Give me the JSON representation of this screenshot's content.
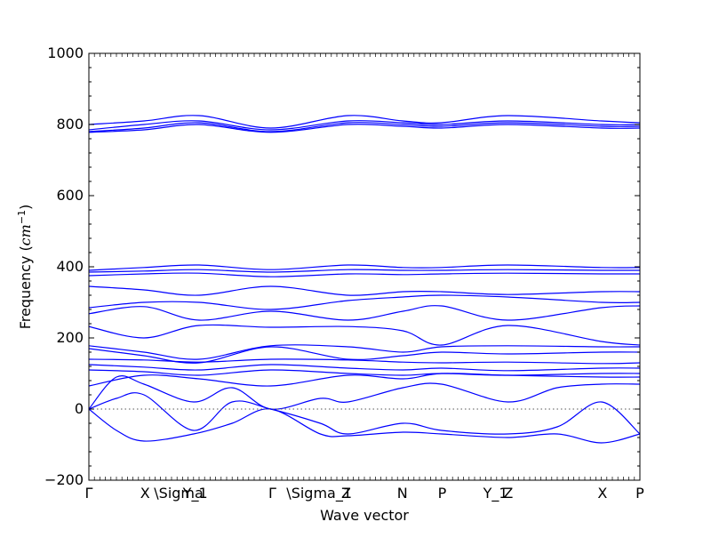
{
  "chart_data": {
    "type": "line",
    "title": "",
    "xlabel": "Wave vector",
    "ylabel": "Frequency (",
    "ylabel_math": "cm",
    "ylabel_sup": "−1",
    "ylabel_close": ")",
    "ylim": [
      -200,
      1000
    ],
    "yticks": [
      -200,
      0,
      200,
      400,
      600,
      800,
      1000
    ],
    "xlim": [
      0,
      1
    ],
    "xticks": [
      {
        "x": 0.0,
        "label": "Γ"
      },
      {
        "x": 0.102,
        "label": "X"
      },
      {
        "x": 0.163,
        "label": "\\Sigma"
      },
      {
        "x": 0.193,
        "label": "Y_1"
      },
      {
        "x": 0.333,
        "label": "Γ"
      },
      {
        "x": 0.418,
        "label": "\\Sigma_1"
      },
      {
        "x": 0.467,
        "label": "Z"
      },
      {
        "x": 0.569,
        "label": "N"
      },
      {
        "x": 0.641,
        "label": "P"
      },
      {
        "x": 0.738,
        "label": "Y_1"
      },
      {
        "x": 0.761,
        "label": "Z"
      },
      {
        "x": 0.932,
        "label": "X"
      },
      {
        "x": 1.0,
        "label": "P"
      }
    ],
    "zero_line": 0,
    "grid": false,
    "legend": "none",
    "series": [
      {
        "x": [
          0,
          0.1,
          0.2,
          0.33,
          0.47,
          0.57,
          0.64,
          0.76,
          0.93,
          1.0
        ],
        "y": [
          800,
          810,
          825,
          790,
          825,
          810,
          805,
          825,
          810,
          805
        ]
      },
      {
        "x": [
          0,
          0.1,
          0.2,
          0.33,
          0.47,
          0.57,
          0.64,
          0.76,
          0.93,
          1.0
        ],
        "y": [
          785,
          800,
          810,
          785,
          810,
          805,
          800,
          810,
          800,
          800
        ]
      },
      {
        "x": [
          0,
          0.1,
          0.2,
          0.33,
          0.47,
          0.57,
          0.64,
          0.76,
          0.93,
          1.0
        ],
        "y": [
          780,
          790,
          805,
          780,
          805,
          800,
          795,
          805,
          795,
          795
        ]
      },
      {
        "x": [
          0,
          0.1,
          0.2,
          0.33,
          0.47,
          0.57,
          0.64,
          0.76,
          0.93,
          1.0
        ],
        "y": [
          778,
          785,
          800,
          778,
          800,
          795,
          790,
          800,
          790,
          790
        ]
      },
      {
        "x": [
          0,
          0.1,
          0.2,
          0.33,
          0.47,
          0.57,
          0.64,
          0.76,
          0.93,
          1.0
        ],
        "y": [
          390,
          398,
          405,
          392,
          405,
          398,
          398,
          405,
          398,
          398
        ]
      },
      {
        "x": [
          0,
          0.1,
          0.2,
          0.33,
          0.47,
          0.57,
          0.64,
          0.76,
          0.93,
          1.0
        ],
        "y": [
          385,
          388,
          392,
          385,
          392,
          390,
          390,
          392,
          390,
          390
        ]
      },
      {
        "x": [
          0,
          0.1,
          0.2,
          0.33,
          0.47,
          0.57,
          0.64,
          0.76,
          0.93,
          1.0
        ],
        "y": [
          375,
          380,
          382,
          372,
          380,
          378,
          380,
          382,
          380,
          380
        ]
      },
      {
        "x": [
          0,
          0.1,
          0.2,
          0.33,
          0.47,
          0.57,
          0.64,
          0.76,
          0.93,
          1.0
        ],
        "y": [
          345,
          335,
          320,
          345,
          320,
          330,
          330,
          322,
          330,
          330
        ]
      },
      {
        "x": [
          0,
          0.1,
          0.2,
          0.33,
          0.47,
          0.57,
          0.64,
          0.76,
          0.93,
          1.0
        ],
        "y": [
          285,
          300,
          300,
          280,
          305,
          315,
          320,
          315,
          300,
          300
        ]
      },
      {
        "x": [
          0,
          0.1,
          0.2,
          0.33,
          0.47,
          0.57,
          0.64,
          0.76,
          0.93,
          1.0
        ],
        "y": [
          268,
          288,
          250,
          275,
          250,
          275,
          290,
          250,
          285,
          290
        ]
      },
      {
        "x": [
          0,
          0.1,
          0.2,
          0.33,
          0.47,
          0.57,
          0.64,
          0.76,
          0.93,
          1.0
        ],
        "y": [
          232,
          200,
          235,
          230,
          232,
          220,
          180,
          235,
          190,
          180
        ]
      },
      {
        "x": [
          0,
          0.1,
          0.2,
          0.33,
          0.47,
          0.57,
          0.64,
          0.76,
          0.93,
          1.0
        ],
        "y": [
          178,
          160,
          140,
          178,
          175,
          160,
          175,
          178,
          175,
          175
        ]
      },
      {
        "x": [
          0,
          0.1,
          0.2,
          0.33,
          0.47,
          0.57,
          0.64,
          0.76,
          0.93,
          1.0
        ],
        "y": [
          170,
          150,
          130,
          175,
          140,
          150,
          160,
          155,
          160,
          160
        ]
      },
      {
        "x": [
          0,
          0.1,
          0.2,
          0.33,
          0.47,
          0.57,
          0.64,
          0.76,
          0.93,
          1.0
        ],
        "y": [
          140,
          138,
          132,
          140,
          138,
          132,
          130,
          132,
          128,
          130
        ]
      },
      {
        "x": [
          0,
          0.1,
          0.2,
          0.33,
          0.47,
          0.57,
          0.64,
          0.76,
          0.93,
          1.0
        ],
        "y": [
          125,
          118,
          110,
          125,
          115,
          110,
          115,
          108,
          115,
          115
        ]
      },
      {
        "x": [
          0,
          0.1,
          0.2,
          0.33,
          0.47,
          0.57,
          0.64,
          0.76,
          0.93,
          1.0
        ],
        "y": [
          110,
          105,
          95,
          110,
          100,
          95,
          100,
          95,
          100,
          100
        ]
      },
      {
        "x": [
          0,
          0.1,
          0.2,
          0.33,
          0.47,
          0.57,
          0.64,
          0.76,
          0.93,
          1.0
        ],
        "y": [
          65,
          95,
          85,
          65,
          95,
          85,
          100,
          95,
          90,
          90
        ]
      },
      {
        "x": [
          0,
          0.05,
          0.1,
          0.19,
          0.26,
          0.33,
          0.42,
          0.47,
          0.57,
          0.64,
          0.76,
          0.85,
          0.93,
          1.0
        ],
        "y": [
          0,
          90,
          70,
          20,
          60,
          0,
          30,
          20,
          60,
          70,
          20,
          60,
          70,
          70
        ]
      },
      {
        "x": [
          0,
          0.05,
          0.1,
          0.19,
          0.26,
          0.33,
          0.42,
          0.47,
          0.57,
          0.64,
          0.76,
          0.85,
          0.93,
          1.0
        ],
        "y": [
          0,
          30,
          40,
          -60,
          20,
          0,
          -40,
          -70,
          -40,
          -60,
          -70,
          -50,
          20,
          -70
        ]
      },
      {
        "x": [
          0,
          0.05,
          0.1,
          0.19,
          0.26,
          0.33,
          0.42,
          0.47,
          0.57,
          0.64,
          0.76,
          0.85,
          0.93,
          1.0
        ],
        "y": [
          0,
          -60,
          -90,
          -70,
          -40,
          0,
          -70,
          -75,
          -65,
          -70,
          -80,
          -70,
          -95,
          -70
        ]
      }
    ]
  }
}
